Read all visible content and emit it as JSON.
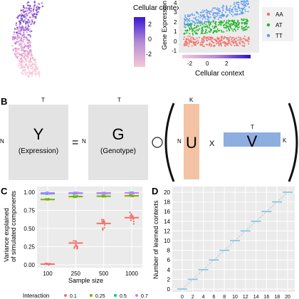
{
  "panelA": {
    "colorbar_title": "Cellular context",
    "colorbar_ticks": [
      "2",
      "0",
      "-2"
    ],
    "scatter": {
      "ylabel": "Gene Expression",
      "xlabel": "Cellular context",
      "y_ticks": [
        "4",
        "3",
        "2",
        "1",
        "0",
        "-1"
      ],
      "x_ticks": [
        "-2",
        "0",
        "2"
      ],
      "legend": [
        {
          "label": "AA",
          "color": "#f0736c"
        },
        {
          "label": "AT",
          "color": "#1fb52b"
        },
        {
          "label": "TT",
          "color": "#5d9cf1"
        }
      ]
    }
  },
  "panelB": {
    "label": "B",
    "Y": {
      "letter": "Y",
      "sub": "(Expression)",
      "top": "T",
      "left": "N"
    },
    "equals": "=",
    "G": {
      "letter": "G",
      "sub": "(Genotype)",
      "top": "T",
      "left": "N"
    },
    "U": {
      "letter": "U",
      "top": "K",
      "left": "N"
    },
    "times": "X",
    "V": {
      "letter": "V",
      "top": "T",
      "right": "K"
    },
    "colors": {
      "gray": "#e3e3e3",
      "orange": "#f3c3a4",
      "blue": "#8faee0"
    }
  },
  "panelC": {
    "label": "C",
    "ylabel_line1": "Variance explained",
    "ylabel_line2": "of simulated components",
    "xlabel": "Sample size",
    "y_ticks": [
      "1.00",
      "0.75",
      "0.50",
      "0.25",
      "0.00"
    ],
    "legend_title": "Interaction",
    "legend_items": [
      "0.1",
      "0.25",
      "0.5",
      "0.7"
    ]
  },
  "panelD": {
    "label": "D",
    "ylabel": "Number of learned contexts",
    "y_ticks": [
      "20",
      "18",
      "16",
      "14",
      "12",
      "10",
      "8",
      "6",
      "4",
      "2",
      "0"
    ]
  },
  "chart_data": [
    {
      "type": "scatter",
      "title": "",
      "xlabel": "Sample size",
      "ylabel": "Variance explained of simulated components",
      "categories": [
        "100",
        "250",
        "500",
        "1000"
      ],
      "ylim": [
        0,
        1
      ],
      "series": [
        {
          "name": "0.1",
          "values": [
            0.01,
            0.3,
            0.57,
            0.65
          ]
        },
        {
          "name": "0.25",
          "values": [
            0.9,
            0.94,
            0.945,
            0.95
          ]
        },
        {
          "name": "0.5",
          "values": [
            0.98,
            0.985,
            0.985,
            0.99
          ]
        },
        {
          "name": "0.7",
          "values": [
            0.99,
            0.99,
            0.99,
            0.99
          ]
        }
      ]
    },
    {
      "type": "line",
      "title": "",
      "xlabel": "",
      "ylabel": "Number of learned contexts",
      "x_ticks": [
        "0",
        "2",
        "4",
        "6",
        "8",
        "10",
        "12",
        "14",
        "16",
        "18",
        "20"
      ],
      "ylim": [
        0,
        20
      ],
      "series": [
        {
          "name": "",
          "x": [
            0,
            2,
            4,
            6,
            8,
            10,
            12,
            14,
            16,
            18,
            20
          ],
          "values": [
            0,
            2,
            4,
            6,
            8,
            10,
            12,
            14,
            16,
            18,
            20
          ]
        }
      ]
    }
  ]
}
